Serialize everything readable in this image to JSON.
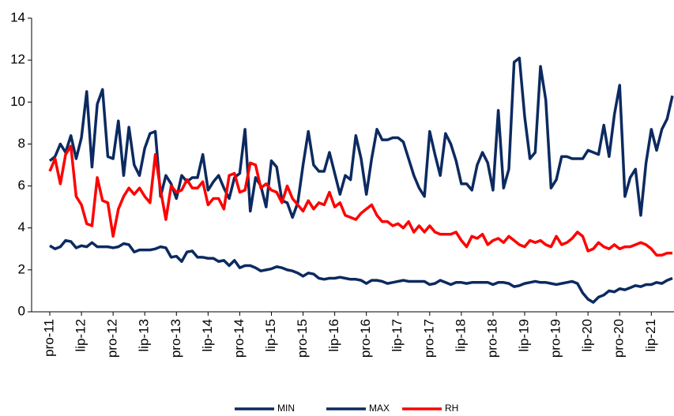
{
  "chart_data": {
    "type": "line",
    "categories": [
      "pro-11",
      null,
      null,
      null,
      null,
      null,
      "lip-12",
      null,
      null,
      null,
      null,
      null,
      "pro-12",
      null,
      null,
      null,
      null,
      null,
      "lip-13",
      null,
      null,
      null,
      null,
      null,
      "pro-13",
      null,
      null,
      null,
      null,
      null,
      "lip-14",
      null,
      null,
      null,
      null,
      null,
      "pro-14",
      null,
      null,
      null,
      null,
      null,
      "lip-15",
      null,
      null,
      null,
      null,
      null,
      "pro-15",
      null,
      null,
      null,
      null,
      null,
      "lip-16",
      null,
      null,
      null,
      null,
      null,
      "pro-16",
      null,
      null,
      null,
      null,
      null,
      "lip-17",
      null,
      null,
      null,
      null,
      null,
      "pro-17",
      null,
      null,
      null,
      null,
      null,
      "lip-18",
      null,
      null,
      null,
      null,
      null,
      "pro-18",
      null,
      null,
      null,
      null,
      null,
      "lip-19",
      null,
      null,
      null,
      null,
      null,
      "pro-19",
      null,
      null,
      null,
      null,
      null,
      "lip-20",
      null,
      null,
      null,
      null,
      null,
      "pro-20",
      null,
      null,
      null,
      null,
      null,
      "lip-21",
      null,
      null,
      null,
      null
    ],
    "series": [
      {
        "name": "MIN",
        "color": "#0c2a60",
        "values": [
          3.15,
          3.0,
          3.1,
          3.4,
          3.35,
          3.05,
          3.15,
          3.1,
          3.3,
          3.1,
          3.1,
          3.1,
          3.05,
          3.1,
          3.25,
          3.2,
          2.85,
          2.95,
          2.95,
          2.95,
          3.0,
          3.1,
          3.05,
          2.6,
          2.65,
          2.4,
          2.85,
          2.9,
          2.6,
          2.6,
          2.55,
          2.55,
          2.4,
          2.45,
          2.2,
          2.45,
          2.1,
          2.2,
          2.2,
          2.1,
          1.95,
          2.0,
          2.05,
          2.15,
          2.1,
          2.0,
          1.95,
          1.85,
          1.7,
          1.85,
          1.8,
          1.6,
          1.55,
          1.6,
          1.6,
          1.65,
          1.6,
          1.55,
          1.55,
          1.5,
          1.35,
          1.5,
          1.5,
          1.45,
          1.35,
          1.4,
          1.45,
          1.5,
          1.45,
          1.45,
          1.45,
          1.45,
          1.3,
          1.35,
          1.5,
          1.4,
          1.3,
          1.4,
          1.4,
          1.35,
          1.4,
          1.4,
          1.4,
          1.4,
          1.3,
          1.4,
          1.4,
          1.35,
          1.2,
          1.25,
          1.35,
          1.4,
          1.45,
          1.4,
          1.4,
          1.35,
          1.3,
          1.35,
          1.4,
          1.45,
          1.35,
          0.9,
          0.6,
          0.45,
          0.7,
          0.8,
          1.0,
          0.95,
          1.1,
          1.05,
          1.15,
          1.25,
          1.2,
          1.3,
          1.3,
          1.4,
          1.35,
          1.5,
          1.6
        ]
      },
      {
        "name": "MAX",
        "color": "#0c2a60",
        "values": [
          7.2,
          7.4,
          8.0,
          7.6,
          8.4,
          7.3,
          8.3,
          10.5,
          6.9,
          9.9,
          10.6,
          7.4,
          7.3,
          9.1,
          6.5,
          8.8,
          7.0,
          6.5,
          7.8,
          8.5,
          8.6,
          5.5,
          6.5,
          6.1,
          5.4,
          6.5,
          6.2,
          6.4,
          6.4,
          7.5,
          5.8,
          6.2,
          6.5,
          5.9,
          5.4,
          6.4,
          6.6,
          8.7,
          4.8,
          6.4,
          6.0,
          5.0,
          7.2,
          6.9,
          5.3,
          5.2,
          4.5,
          5.2,
          7.0,
          8.6,
          7.0,
          6.7,
          6.7,
          7.6,
          6.6,
          5.6,
          6.5,
          6.3,
          8.4,
          7.3,
          5.6,
          7.3,
          8.7,
          8.2,
          8.2,
          8.3,
          8.3,
          8.1,
          7.3,
          6.5,
          5.9,
          5.5,
          8.6,
          7.5,
          6.5,
          8.5,
          8.0,
          7.2,
          6.1,
          6.1,
          5.8,
          7.0,
          7.6,
          7.1,
          5.8,
          9.6,
          5.9,
          6.8,
          11.9,
          12.1,
          9.3,
          7.3,
          7.6,
          11.7,
          10.1,
          5.9,
          6.3,
          7.4,
          7.4,
          7.3,
          7.3,
          7.3,
          7.7,
          7.6,
          7.5,
          8.9,
          7.4,
          9.4,
          10.8,
          5.5,
          6.4,
          6.8,
          4.6,
          7.1,
          8.7,
          7.7,
          8.7,
          9.2,
          10.3
        ]
      },
      {
        "name": "RH",
        "color": "#ff0000",
        "values": [
          6.7,
          7.3,
          6.1,
          7.5,
          7.9,
          5.5,
          5.1,
          4.2,
          4.1,
          6.4,
          5.3,
          5.2,
          3.6,
          4.9,
          5.5,
          5.9,
          5.6,
          5.9,
          5.5,
          5.2,
          7.5,
          5.8,
          4.4,
          6.0,
          5.7,
          5.8,
          6.3,
          5.9,
          5.9,
          6.2,
          5.1,
          5.4,
          5.4,
          4.9,
          6.5,
          6.6,
          5.7,
          5.8,
          7.1,
          7.0,
          5.9,
          6.1,
          5.8,
          5.7,
          5.2,
          6.0,
          5.4,
          5.1,
          4.8,
          5.3,
          4.9,
          5.2,
          5.1,
          5.7,
          5.0,
          5.2,
          4.6,
          4.5,
          4.4,
          4.7,
          4.9,
          5.1,
          4.6,
          4.3,
          4.3,
          4.1,
          4.2,
          4.0,
          4.3,
          3.8,
          4.1,
          3.8,
          4.1,
          3.8,
          3.7,
          3.7,
          3.7,
          3.8,
          3.4,
          3.1,
          3.6,
          3.5,
          3.7,
          3.2,
          3.4,
          3.5,
          3.3,
          3.6,
          3.4,
          3.2,
          3.1,
          3.4,
          3.3,
          3.4,
          3.2,
          3.1,
          3.6,
          3.2,
          3.3,
          3.5,
          3.8,
          3.6,
          2.9,
          3.0,
          3.3,
          3.1,
          3.0,
          3.2,
          3.0,
          3.1,
          3.1,
          3.2,
          3.3,
          3.2,
          3.0,
          2.7,
          2.7,
          2.8,
          2.8
        ]
      }
    ],
    "ylim": [
      0,
      14
    ],
    "yticks": [
      0,
      2,
      4,
      6,
      8,
      10,
      12,
      14
    ],
    "grid": false,
    "legend": "bottom"
  }
}
